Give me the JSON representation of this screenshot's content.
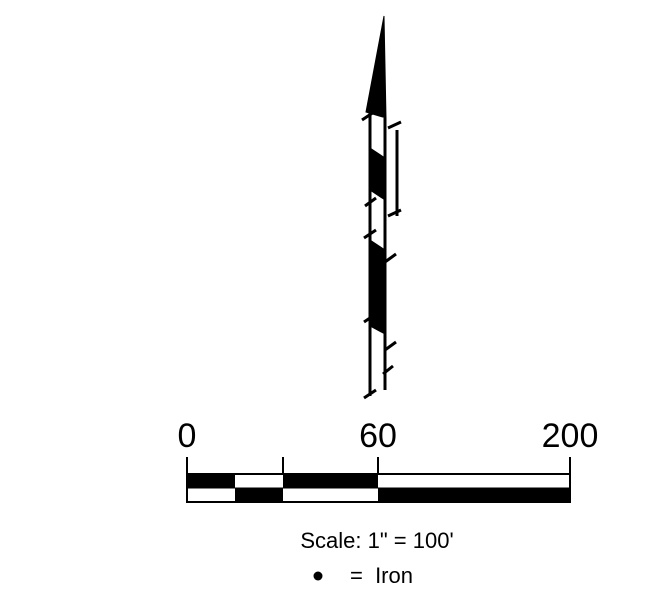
{
  "scale_bar": {
    "tick_labels": [
      "0",
      "60",
      "200"
    ],
    "caption": "Scale: 1\" = 100'"
  },
  "legend": {
    "symbol": "•",
    "text": "=  Iron"
  },
  "icons": {
    "north_arrow": "north-arrow-icon",
    "iron_marker": "filled-dot-icon"
  },
  "colors": {
    "ink": "#000000",
    "background": "#ffffff"
  }
}
